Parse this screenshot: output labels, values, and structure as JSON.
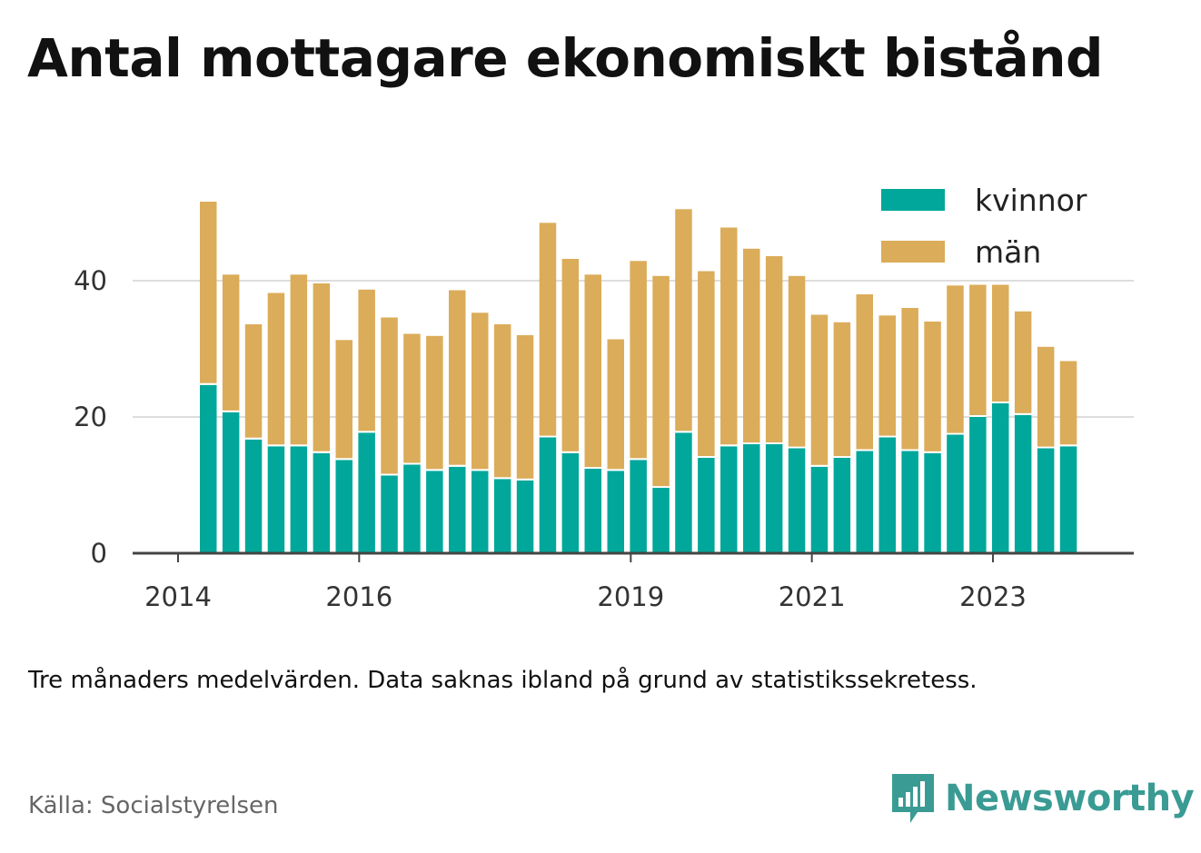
{
  "title": "Antal mottagare ekonomiskt bistånd",
  "note": "Tre månaders medelvärden. Data saknas ibland på grund av statistikssekretess.",
  "source": "Källa: Socialstyrelsen",
  "brand": {
    "name": "Newsworthy",
    "icon": "newsworthy-logo-icon",
    "color": "#3a9b94"
  },
  "chart_data": {
    "type": "bar",
    "stacked": true,
    "title": "Antal mottagare ekonomiskt bistånd",
    "xlabel": "",
    "ylabel": "",
    "ylim": [
      0,
      52
    ],
    "yticks": [
      0,
      20,
      40
    ],
    "grid": true,
    "legend_position": "top-right",
    "x_start": "2014-01",
    "x_end": "2024-12",
    "x_ticks": [
      {
        "label": "2014",
        "x": "2014-01"
      },
      {
        "label": "2016",
        "x": "2016-01"
      },
      {
        "label": "2019",
        "x": "2019-01"
      },
      {
        "label": "2021",
        "x": "2021-01"
      },
      {
        "label": "2023",
        "x": "2023-01"
      }
    ],
    "categories": [
      "2014-05",
      "2014-08",
      "2014-11",
      "2015-02",
      "2015-05",
      "2015-08",
      "2015-11",
      "2016-02",
      "2016-05",
      "2016-08",
      "2016-11",
      "2017-02",
      "2017-05",
      "2017-08",
      "2017-11",
      "2018-02",
      "2018-05",
      "2018-08",
      "2018-11",
      "2019-02",
      "2019-05",
      "2019-08",
      "2019-11",
      "2020-02",
      "2020-05",
      "2020-08",
      "2020-11",
      "2021-02",
      "2021-05",
      "2021-08",
      "2021-11",
      "2022-02",
      "2022-05",
      "2022-08",
      "2022-11",
      "2023-02",
      "2023-05",
      "2023-08",
      "2023-11"
    ],
    "series": [
      {
        "name": "kvinnor",
        "color": "#00a79a",
        "values": [
          24.7,
          20.7,
          16.7,
          15.7,
          15.7,
          14.7,
          13.7,
          17.7,
          11.4,
          13.0,
          12.1,
          12.7,
          12.1,
          10.9,
          10.7,
          17.0,
          14.7,
          12.4,
          12.1,
          13.7,
          9.6,
          17.7,
          14.0,
          15.7,
          16.0,
          16.0,
          15.4,
          12.7,
          14.0,
          15.0,
          17.0,
          15.0,
          14.7,
          17.4,
          20.0,
          22.0,
          20.3,
          15.4,
          15.7
        ]
      },
      {
        "name": "män",
        "color": "#dbac59",
        "values": [
          26.9,
          20.2,
          16.9,
          22.5,
          25.2,
          24.9,
          17.6,
          21.0,
          23.2,
          19.2,
          19.8,
          25.9,
          23.2,
          22.7,
          21.3,
          31.5,
          28.5,
          28.5,
          19.3,
          29.2,
          31.1,
          32.8,
          27.4,
          32.1,
          28.7,
          27.6,
          25.3,
          22.3,
          19.9,
          23.0,
          17.9,
          21.0,
          19.3,
          21.9,
          19.4,
          17.4,
          15.2,
          14.9,
          12.5
        ]
      }
    ]
  }
}
